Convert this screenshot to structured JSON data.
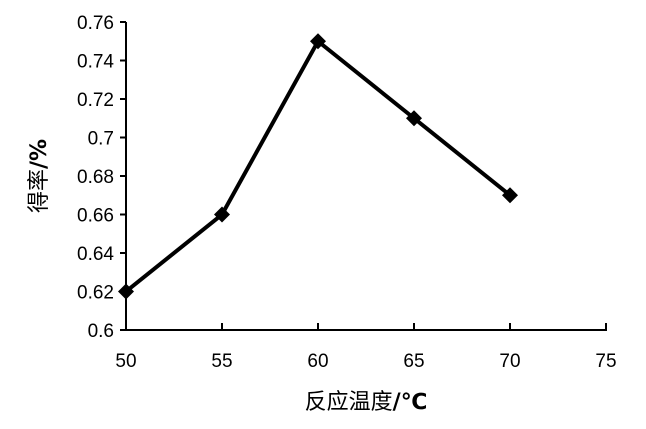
{
  "chart_data": {
    "type": "line",
    "title": "",
    "xlabel_prefix": "反应温度",
    "xlabel_suffix": "/℃",
    "ylabel_prefix": "得率",
    "ylabel_suffix": "/%",
    "xlim": [
      50,
      75
    ],
    "ylim": [
      0.6,
      0.76
    ],
    "x_ticks": [
      "50",
      "55",
      "60",
      "65",
      "70",
      "75"
    ],
    "y_ticks": [
      "0.6",
      "0.62",
      "0.64",
      "0.66",
      "0.68",
      "0.7",
      "0.72",
      "0.74",
      "0.76"
    ],
    "grid": false,
    "legend": "none",
    "marker": "diamond",
    "series": [
      {
        "x": [
          50,
          55,
          60,
          65,
          70
        ],
        "values": [
          0.62,
          0.66,
          0.75,
          0.71,
          0.67
        ]
      }
    ],
    "colors": {
      "line": "#000000",
      "axis": "#000000"
    }
  }
}
